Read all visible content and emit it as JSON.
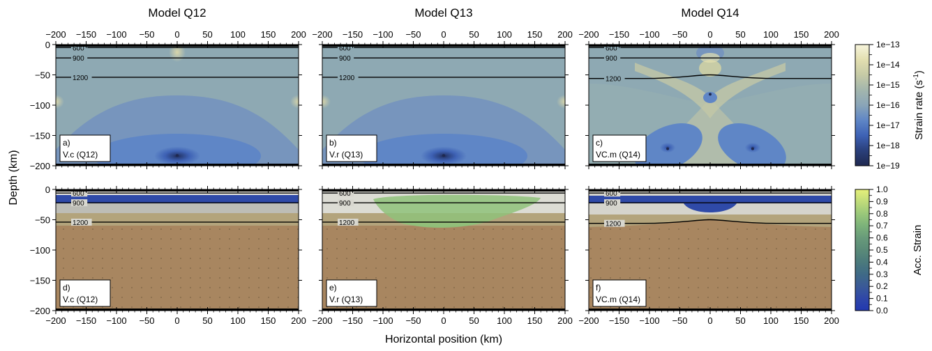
{
  "figure": {
    "y_axis_label": "Depth (km)",
    "x_axis_label": "Horizontal position (km)",
    "column_titles": [
      "Model Q12",
      "Model Q13",
      "Model Q14"
    ]
  },
  "colorbars": {
    "strain_rate": {
      "label": "Strain rate (s",
      "label_exp": "-1",
      "label_close": ")",
      "ticks": [
        "1e-13",
        "1e-14",
        "1e-15",
        "1e-16",
        "1e-17",
        "1e-18",
        "1e-19"
      ],
      "colors": [
        "#f7f5dc",
        "#e3dfb0",
        "#c6caa6",
        "#a3b6ad",
        "#8aa5b8",
        "#5f86c6",
        "#3e62b5",
        "#2a3f7a",
        "#1f2950"
      ]
    },
    "acc_strain": {
      "label": "Acc. Strain",
      "ticks": [
        "1.0",
        "0.9",
        "0.8",
        "0.7",
        "0.6",
        "0.5",
        "0.4",
        "0.3",
        "0.2",
        "0.1",
        "0.0"
      ],
      "colors": [
        "#e6f07a",
        "#c0dc7a",
        "#9ac87a",
        "#7cb27a",
        "#689a7a",
        "#5a8a78",
        "#4b7a7c",
        "#3f6a86",
        "#3a5a98",
        "#2f47a8",
        "#2238b0"
      ]
    }
  },
  "chart_data": [
    {
      "type": "heatmap",
      "panel": "a)",
      "label": "V.c (Q12)",
      "quantity": "strain rate",
      "xlim": [
        -200,
        200
      ],
      "ylim": [
        -200,
        0
      ],
      "x_ticks": [
        -200,
        -150,
        -100,
        -50,
        0,
        50,
        100,
        150,
        200
      ],
      "y_ticks": [
        0,
        -50,
        -100,
        -150,
        -200
      ],
      "isotherms": [
        {
          "label": "600",
          "depth": -5
        },
        {
          "label": "900",
          "depth": -22
        },
        {
          "label": "1200",
          "depth": -54
        }
      ],
      "strain_max_centers": [
        {
          "x": 0,
          "depth": -183
        }
      ]
    },
    {
      "type": "heatmap",
      "panel": "b)",
      "label": "V.r (Q13)",
      "quantity": "strain rate",
      "xlim": [
        -200,
        200
      ],
      "ylim": [
        -200,
        0
      ],
      "x_ticks": [
        -200,
        -150,
        -100,
        -50,
        0,
        50,
        100,
        150,
        200
      ],
      "y_ticks": [
        0,
        -50,
        -100,
        -150,
        -200
      ],
      "isotherms": [
        {
          "label": "600",
          "depth": -5
        },
        {
          "label": "900",
          "depth": -22
        },
        {
          "label": "1200",
          "depth": -54
        }
      ],
      "strain_max_centers": [
        {
          "x": 0,
          "depth": -183
        }
      ]
    },
    {
      "type": "heatmap",
      "panel": "c)",
      "label": "VC.m (Q14)",
      "quantity": "strain rate",
      "xlim": [
        -200,
        200
      ],
      "ylim": [
        -200,
        0
      ],
      "x_ticks": [
        -200,
        -150,
        -100,
        -50,
        0,
        50,
        100,
        150,
        200
      ],
      "y_ticks": [
        0,
        -50,
        -100,
        -150,
        -200
      ],
      "isotherms": [
        {
          "label": "600",
          "depth": -5
        },
        {
          "label": "900",
          "depth": -22
        },
        {
          "label": "1200",
          "depth": -56,
          "uplift_at_x0": -50
        }
      ],
      "strain_max_centers": [
        {
          "x": -70,
          "depth": -172
        },
        {
          "x": 70,
          "depth": -172
        },
        {
          "x": 0,
          "depth": -82
        }
      ]
    },
    {
      "type": "heatmap",
      "panel": "d)",
      "label": "V.c (Q12)",
      "quantity": "accumulated strain",
      "xlim": [
        -200,
        200
      ],
      "ylim": [
        -200,
        0
      ],
      "x_ticks": [
        -200,
        -150,
        -100,
        -50,
        0,
        50,
        100,
        150,
        200
      ],
      "y_ticks": [
        0,
        -50,
        -100,
        -150,
        -200
      ],
      "isotherms": [
        {
          "label": "600",
          "depth": -6
        },
        {
          "label": "900",
          "depth": -22
        },
        {
          "label": "1200",
          "depth": -54
        }
      ]
    },
    {
      "type": "heatmap",
      "panel": "e)",
      "label": "V.r (Q13)",
      "quantity": "accumulated strain",
      "xlim": [
        -200,
        200
      ],
      "ylim": [
        -200,
        0
      ],
      "x_ticks": [
        -200,
        -150,
        -100,
        -50,
        0,
        50,
        100,
        150,
        200
      ],
      "y_ticks": [
        0,
        -50,
        -100,
        -150,
        -200
      ],
      "isotherms": [
        {
          "label": "600",
          "depth": -6
        },
        {
          "label": "900",
          "depth": -22
        },
        {
          "label": "1200",
          "depth": -54
        }
      ]
    },
    {
      "type": "heatmap",
      "panel": "f)",
      "label": "VC.m (Q14)",
      "quantity": "accumulated strain",
      "xlim": [
        -200,
        200
      ],
      "ylim": [
        -200,
        0
      ],
      "x_ticks": [
        -200,
        -150,
        -100,
        -50,
        0,
        50,
        100,
        150,
        200
      ],
      "y_ticks": [
        0,
        -50,
        -100,
        -150,
        -200
      ],
      "isotherms": [
        {
          "label": "600",
          "depth": -6
        },
        {
          "label": "900",
          "depth": -22
        },
        {
          "label": "1200",
          "depth": -56,
          "uplift_at_x0": -50
        }
      ]
    }
  ]
}
